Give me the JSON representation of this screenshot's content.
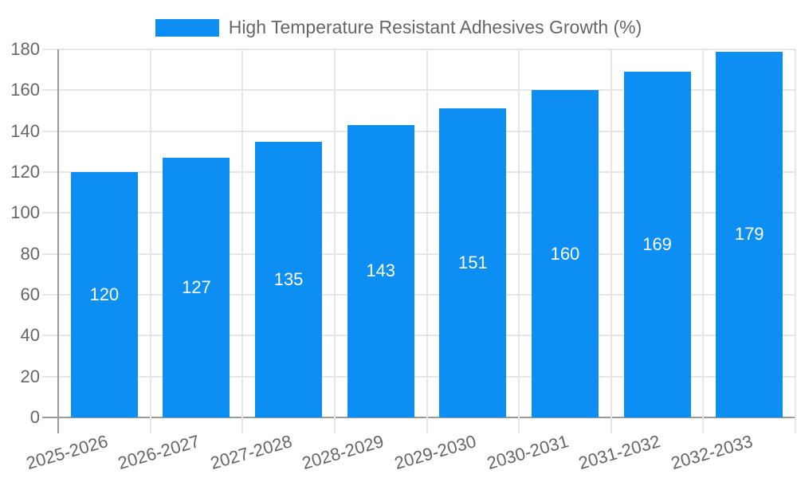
{
  "legend": {
    "label": "High Temperature Resistant Adhesives Growth (%)"
  },
  "chart_data": {
    "type": "bar",
    "title": "",
    "categories": [
      "2025-2026",
      "2026-2027",
      "2027-2028",
      "2028-2029",
      "2029-2030",
      "2030-2031",
      "2031-2032",
      "2032-2033"
    ],
    "series": [
      {
        "name": "High Temperature Resistant Adhesives Growth (%)",
        "values": [
          120,
          127,
          135,
          143,
          151,
          160,
          169,
          179
        ]
      }
    ],
    "bar_labels": [
      120,
      127,
      135,
      143,
      151,
      160,
      169,
      179
    ],
    "xlabel": "",
    "ylabel": "",
    "ylim": [
      0,
      180
    ],
    "yticks": [
      0,
      20,
      40,
      60,
      80,
      100,
      120,
      140,
      160,
      180
    ],
    "grid": true,
    "legend_position": "top-center",
    "colors": {
      "bar": "#0D8EF2",
      "grid_line": "#E6E6E6",
      "axis_line": "#9A9A9A",
      "tick_text": "#666666",
      "bar_label_text": "#FFFFFF"
    }
  }
}
